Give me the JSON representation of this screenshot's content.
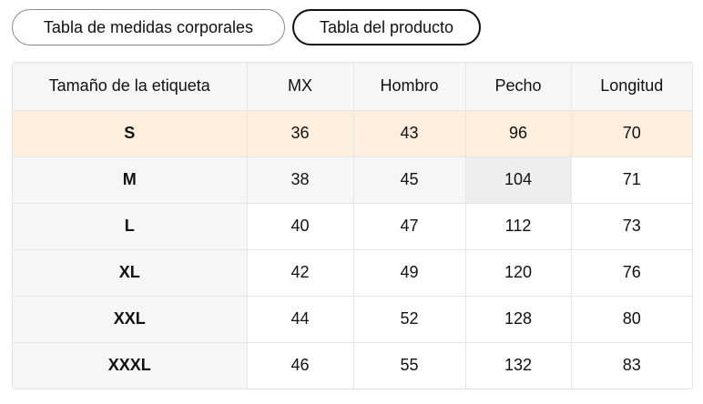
{
  "tabs": [
    {
      "label": "Tabla de medidas corporales",
      "active": false
    },
    {
      "label": "Tabla del producto",
      "active": true
    }
  ],
  "table": {
    "headers": [
      "Tamaño de la etiqueta",
      "MX",
      "Hombro",
      "Pecho",
      "Longitud"
    ],
    "rows": [
      [
        "S",
        "36",
        "43",
        "96",
        "70"
      ],
      [
        "M",
        "38",
        "45",
        "104",
        "71"
      ],
      [
        "L",
        "40",
        "47",
        "112",
        "73"
      ],
      [
        "XL",
        "42",
        "49",
        "120",
        "76"
      ],
      [
        "XXL",
        "44",
        "52",
        "128",
        "80"
      ],
      [
        "XXXL",
        "46",
        "55",
        "132",
        "83"
      ]
    ],
    "highlight_row_color": "#fdeede",
    "header_bg_color": "#f6f6f6"
  }
}
